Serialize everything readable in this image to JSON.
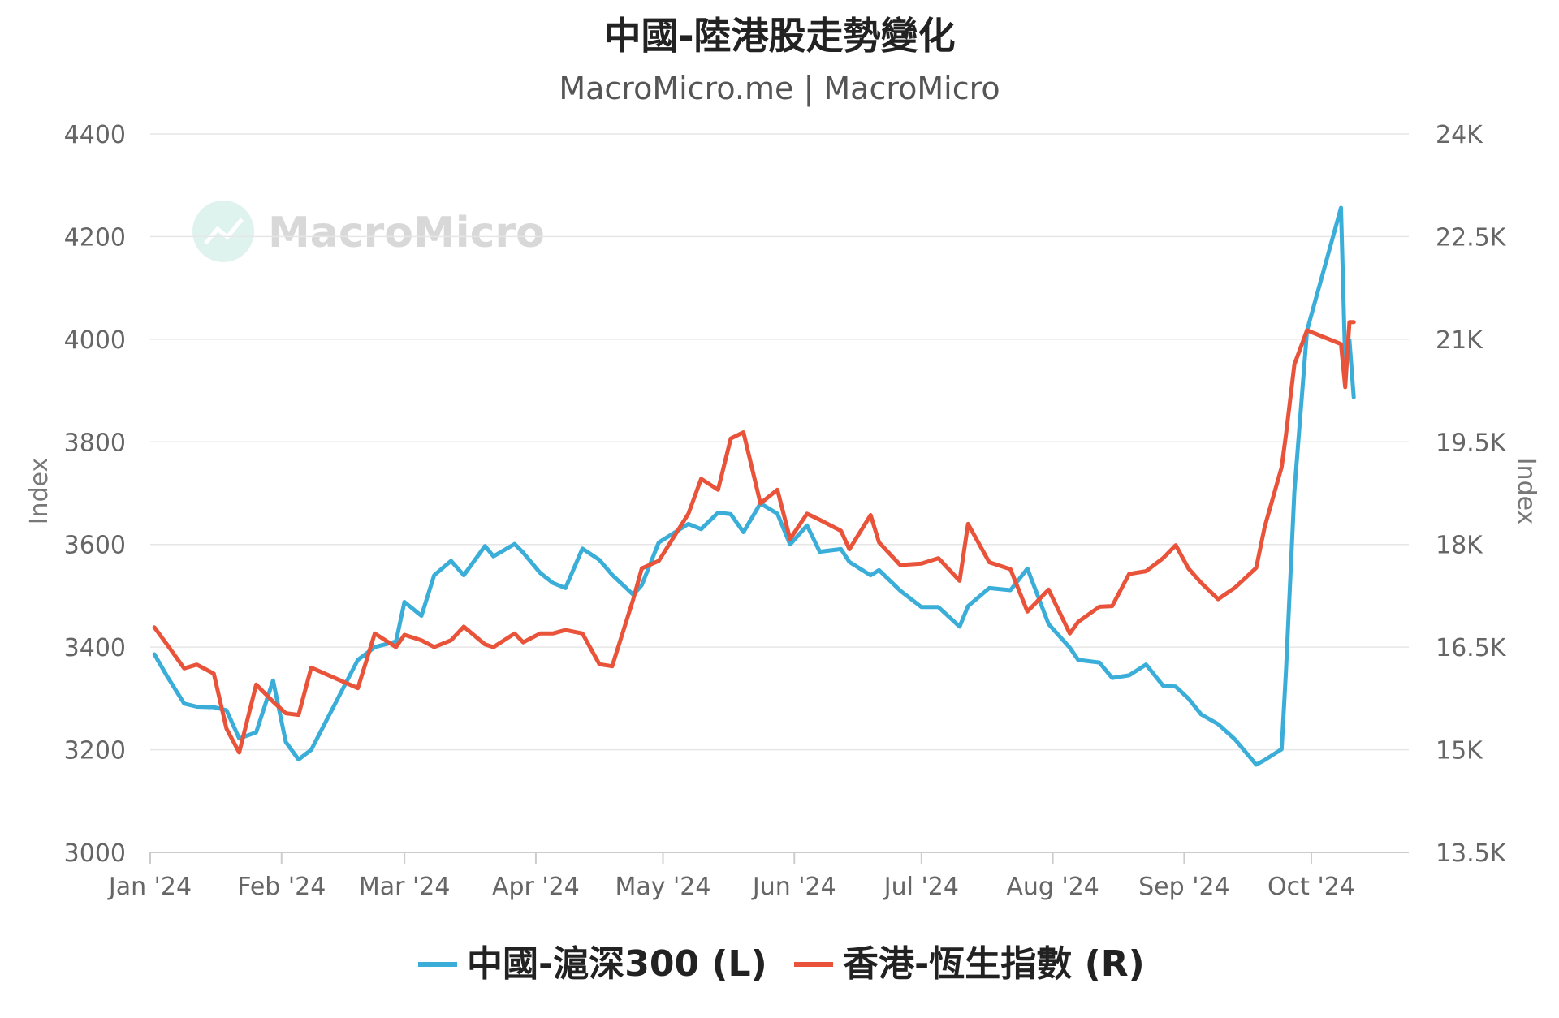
{
  "chart_data": {
    "type": "line",
    "title": "中國-陸港股走勢變化",
    "subtitle": "MacroMicro.me | MacroMicro",
    "watermark": "MacroMicro",
    "x_ticks": [
      "Jan '24",
      "Feb '24",
      "Mar '24",
      "Apr '24",
      "May '24",
      "Jun '24",
      "Jul '24",
      "Aug '24",
      "Sep '24",
      "Oct '24"
    ],
    "y_left": {
      "label": "Index",
      "range": [
        3000,
        4400
      ],
      "ticks": [
        "3000",
        "3200",
        "3400",
        "3600",
        "3800",
        "4000",
        "4200",
        "4400"
      ]
    },
    "y_right": {
      "label": "Index",
      "range": [
        13500,
        24000
      ],
      "ticks": [
        "13.5K",
        "15K",
        "16.5K",
        "18K",
        "19.5K",
        "21K",
        "22.5K",
        "24K"
      ]
    },
    "grid": true,
    "legend_position": "bottom-center",
    "series": [
      {
        "name": "中國-滬深300 (L)",
        "axis": "left",
        "color": "#3aaed8",
        "points": [
          [
            "2024-01-02",
            3386
          ],
          [
            "2024-01-05",
            3343
          ],
          [
            "2024-01-09",
            3290
          ],
          [
            "2024-01-12",
            3284
          ],
          [
            "2024-01-16",
            3283
          ],
          [
            "2024-01-19",
            3277
          ],
          [
            "2024-01-22",
            3222
          ],
          [
            "2024-01-26",
            3234
          ],
          [
            "2024-01-30",
            3335
          ],
          [
            "2024-02-02",
            3215
          ],
          [
            "2024-02-05",
            3181
          ],
          [
            "2024-02-08",
            3200
          ],
          [
            "2024-02-19",
            3375
          ],
          [
            "2024-02-23",
            3400
          ],
          [
            "2024-02-28",
            3411
          ],
          [
            "2024-03-01",
            3488
          ],
          [
            "2024-03-05",
            3461
          ],
          [
            "2024-03-08",
            3540
          ],
          [
            "2024-03-12",
            3568
          ],
          [
            "2024-03-15",
            3540
          ],
          [
            "2024-03-20",
            3597
          ],
          [
            "2024-03-22",
            3577
          ],
          [
            "2024-03-27",
            3601
          ],
          [
            "2024-03-29",
            3584
          ],
          [
            "2024-04-02",
            3545
          ],
          [
            "2024-04-05",
            3525
          ],
          [
            "2024-04-08",
            3515
          ],
          [
            "2024-04-12",
            3592
          ],
          [
            "2024-04-16",
            3570
          ],
          [
            "2024-04-19",
            3541
          ],
          [
            "2024-04-24",
            3502
          ],
          [
            "2024-04-26",
            3521
          ],
          [
            "2024-04-30",
            3604
          ],
          [
            "2024-05-07",
            3640
          ],
          [
            "2024-05-10",
            3630
          ],
          [
            "2024-05-14",
            3662
          ],
          [
            "2024-05-17",
            3659
          ],
          [
            "2024-05-20",
            3624
          ],
          [
            "2024-05-24",
            3680
          ],
          [
            "2024-05-28",
            3660
          ],
          [
            "2024-05-31",
            3600
          ],
          [
            "2024-06-04",
            3637
          ],
          [
            "2024-06-07",
            3586
          ],
          [
            "2024-06-12",
            3591
          ],
          [
            "2024-06-14",
            3566
          ],
          [
            "2024-06-19",
            3540
          ],
          [
            "2024-06-21",
            3550
          ],
          [
            "2024-06-26",
            3510
          ],
          [
            "2024-07-01",
            3478
          ],
          [
            "2024-07-05",
            3478
          ],
          [
            "2024-07-10",
            3440
          ],
          [
            "2024-07-12",
            3480
          ],
          [
            "2024-07-17",
            3515
          ],
          [
            "2024-07-22",
            3511
          ],
          [
            "2024-07-26",
            3553
          ],
          [
            "2024-07-31",
            3445
          ],
          [
            "2024-08-05",
            3399
          ],
          [
            "2024-08-07",
            3375
          ],
          [
            "2024-08-12",
            3370
          ],
          [
            "2024-08-15",
            3340
          ],
          [
            "2024-08-19",
            3345
          ],
          [
            "2024-08-23",
            3366
          ],
          [
            "2024-08-27",
            3325
          ],
          [
            "2024-08-30",
            3323
          ],
          [
            "2024-09-02",
            3300
          ],
          [
            "2024-09-05",
            3269
          ],
          [
            "2024-09-09",
            3250
          ],
          [
            "2024-09-13",
            3220
          ],
          [
            "2024-09-18",
            3171
          ],
          [
            "2024-09-20",
            3180
          ],
          [
            "2024-09-24",
            3201
          ],
          [
            "2024-09-25",
            3352
          ],
          [
            "2024-09-27",
            3703
          ],
          [
            "2024-09-30",
            4017
          ],
          [
            "2024-10-08",
            4256
          ],
          [
            "2024-10-09",
            3955
          ],
          [
            "2024-10-10",
            3998
          ],
          [
            "2024-10-11",
            3887
          ]
        ]
      },
      {
        "name": "香港-恆生指數 (R)",
        "axis": "right",
        "color": "#e8533a",
        "points": [
          [
            "2024-01-02",
            16789
          ],
          [
            "2024-01-05",
            16535
          ],
          [
            "2024-01-09",
            16190
          ],
          [
            "2024-01-12",
            16244
          ],
          [
            "2024-01-16",
            16113
          ],
          [
            "2024-01-19",
            15309
          ],
          [
            "2024-01-22",
            14961
          ],
          [
            "2024-01-26",
            15952
          ],
          [
            "2024-01-30",
            15703
          ],
          [
            "2024-02-02",
            15533
          ],
          [
            "2024-02-05",
            15510
          ],
          [
            "2024-02-08",
            16200
          ],
          [
            "2024-02-19",
            15900
          ],
          [
            "2024-02-23",
            16700
          ],
          [
            "2024-02-28",
            16500
          ],
          [
            "2024-03-01",
            16680
          ],
          [
            "2024-03-05",
            16600
          ],
          [
            "2024-03-08",
            16500
          ],
          [
            "2024-03-12",
            16600
          ],
          [
            "2024-03-15",
            16800
          ],
          [
            "2024-03-20",
            16540
          ],
          [
            "2024-03-22",
            16500
          ],
          [
            "2024-03-27",
            16700
          ],
          [
            "2024-03-29",
            16570
          ],
          [
            "2024-04-02",
            16700
          ],
          [
            "2024-04-05",
            16700
          ],
          [
            "2024-04-08",
            16750
          ],
          [
            "2024-04-12",
            16700
          ],
          [
            "2024-04-16",
            16250
          ],
          [
            "2024-04-19",
            16220
          ],
          [
            "2024-04-24",
            17200
          ],
          [
            "2024-04-26",
            17650
          ],
          [
            "2024-04-30",
            17760
          ],
          [
            "2024-05-07",
            18450
          ],
          [
            "2024-05-10",
            18960
          ],
          [
            "2024-05-14",
            18800
          ],
          [
            "2024-05-17",
            19550
          ],
          [
            "2024-05-20",
            19640
          ],
          [
            "2024-05-24",
            18600
          ],
          [
            "2024-05-28",
            18800
          ],
          [
            "2024-05-31",
            18080
          ],
          [
            "2024-06-04",
            18450
          ],
          [
            "2024-06-07",
            18360
          ],
          [
            "2024-06-12",
            18200
          ],
          [
            "2024-06-14",
            17930
          ],
          [
            "2024-06-19",
            18430
          ],
          [
            "2024-06-21",
            18030
          ],
          [
            "2024-06-26",
            17700
          ],
          [
            "2024-07-01",
            17720
          ],
          [
            "2024-07-05",
            17800
          ],
          [
            "2024-07-10",
            17470
          ],
          [
            "2024-07-12",
            18300
          ],
          [
            "2024-07-17",
            17740
          ],
          [
            "2024-07-22",
            17640
          ],
          [
            "2024-07-26",
            17020
          ],
          [
            "2024-07-31",
            17340
          ],
          [
            "2024-08-05",
            16700
          ],
          [
            "2024-08-07",
            16870
          ],
          [
            "2024-08-12",
            17090
          ],
          [
            "2024-08-15",
            17100
          ],
          [
            "2024-08-19",
            17570
          ],
          [
            "2024-08-23",
            17610
          ],
          [
            "2024-08-27",
            17800
          ],
          [
            "2024-08-30",
            17990
          ],
          [
            "2024-09-02",
            17650
          ],
          [
            "2024-09-05",
            17440
          ],
          [
            "2024-09-09",
            17200
          ],
          [
            "2024-09-13",
            17370
          ],
          [
            "2024-09-18",
            17660
          ],
          [
            "2024-09-20",
            18260
          ],
          [
            "2024-09-24",
            19130
          ],
          [
            "2024-09-25",
            19600
          ],
          [
            "2024-09-27",
            20630
          ],
          [
            "2024-09-30",
            21130
          ],
          [
            "2024-10-08",
            20930
          ],
          [
            "2024-10-09",
            20300
          ],
          [
            "2024-10-10",
            21250
          ],
          [
            "2024-10-11",
            21250
          ]
        ]
      }
    ]
  }
}
